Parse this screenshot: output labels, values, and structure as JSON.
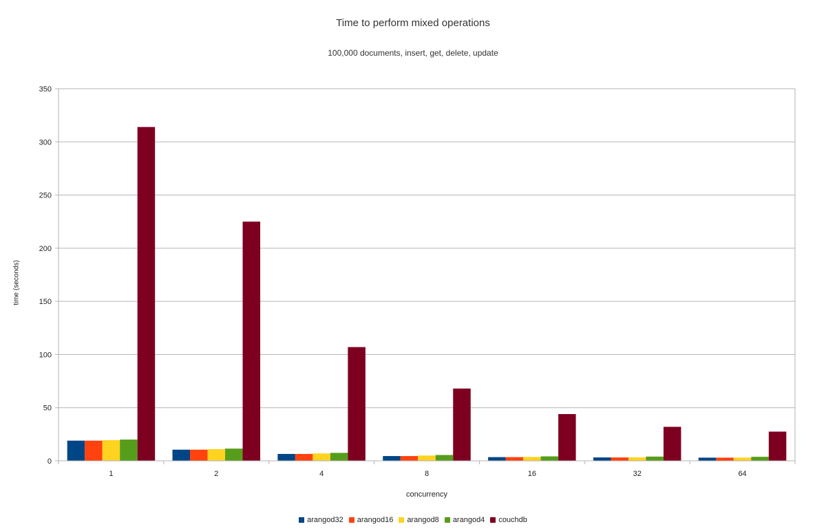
{
  "chart_data": {
    "type": "bar",
    "title": "Time to perform mixed operations",
    "subtitle": "100,000 documents, insert, get, delete, update",
    "xlabel": "concurrency",
    "ylabel": "time (seconds)",
    "ylim": [
      0,
      350
    ],
    "yticks": [
      "0",
      "50",
      "100",
      "150",
      "200",
      "250",
      "300",
      "350"
    ],
    "grid": true,
    "legend_position": "bottom",
    "categories": [
      "1",
      "2",
      "4",
      "8",
      "16",
      "32",
      "64"
    ],
    "series": [
      {
        "name": "arangod32",
        "color": "#004586",
        "values": [
          19,
          10.5,
          6.5,
          4.5,
          3.5,
          3.2,
          3
        ]
      },
      {
        "name": "arangod16",
        "color": "#ff420e",
        "values": [
          19,
          10.5,
          6.5,
          4.5,
          3.5,
          3.2,
          3
        ]
      },
      {
        "name": "arangod8",
        "color": "#ffd320",
        "values": [
          19.5,
          11,
          7,
          5,
          3.7,
          3.3,
          3.1
        ]
      },
      {
        "name": "arangod4",
        "color": "#579d1c",
        "values": [
          20,
          11.5,
          7.5,
          5.5,
          4.2,
          4,
          3.8
        ]
      },
      {
        "name": "couchdb",
        "color": "#7e0021",
        "values": [
          314,
          225,
          107,
          68,
          44,
          32,
          27.5
        ]
      }
    ]
  }
}
